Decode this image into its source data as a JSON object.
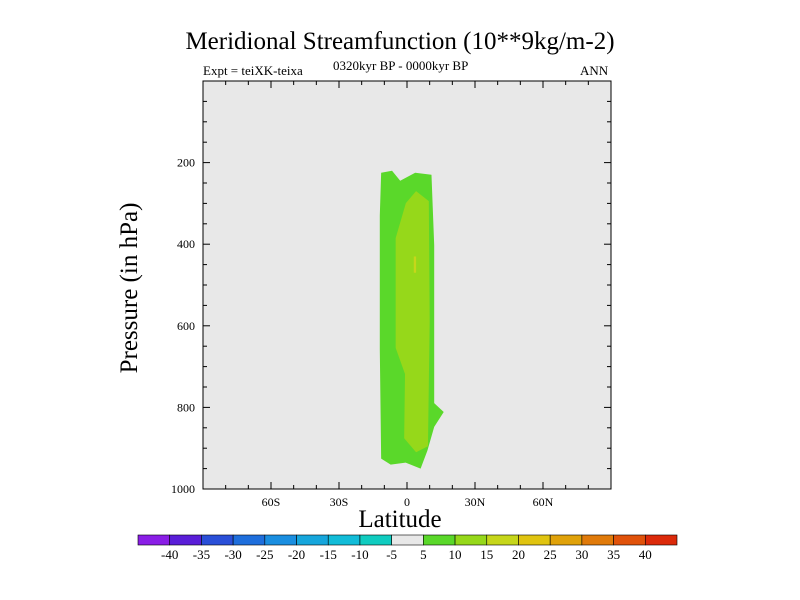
{
  "titles": {
    "main": "Meridional Streamfunction (10**9kg/m-2)",
    "left": "Expt = teiXK-teixa",
    "center": "0320kyr BP - 0000kyr BP",
    "right": "ANN"
  },
  "chart_data": {
    "type": "contour",
    "xlabel": "Latitude",
    "ylabel": "Pressure (in hPa)",
    "xlim": [
      -90,
      90
    ],
    "ylim": [
      1000,
      0
    ],
    "x_ticks": [
      {
        "value": -60,
        "label": "60S"
      },
      {
        "value": -30,
        "label": "30S"
      },
      {
        "value": 0,
        "label": "0"
      },
      {
        "value": 30,
        "label": "30N"
      },
      {
        "value": 60,
        "label": "60N"
      }
    ],
    "y_ticks": [
      {
        "value": 200,
        "label": "200"
      },
      {
        "value": 400,
        "label": "400"
      },
      {
        "value": 600,
        "label": "600"
      },
      {
        "value": 800,
        "label": "800"
      },
      {
        "value": 1000,
        "label": "1000"
      }
    ],
    "background_level": "-5 to 5",
    "contour_regions": [
      {
        "level": "5 to 10",
        "lat_range": [
          -12,
          12
        ],
        "pressure_range": [
          220,
          950
        ]
      },
      {
        "level": "10 to 15",
        "lat_range": [
          -5,
          10
        ],
        "pressure_range": [
          270,
          910
        ]
      },
      {
        "level": "15 to 20",
        "lat_range": [
          3,
          4
        ],
        "pressure_range": [
          430,
          470
        ]
      }
    ],
    "colorbar": {
      "labels": [
        "-40",
        "-35",
        "-30",
        "-25",
        "-20",
        "-15",
        "-10",
        "-5",
        "5",
        "10",
        "15",
        "20",
        "25",
        "30",
        "35",
        "40"
      ],
      "colors": [
        "#8a1ee6",
        "#5a1ed8",
        "#2a4fd8",
        "#1e6edc",
        "#1a8ee0",
        "#16a6dc",
        "#12bcd8",
        "#10ccc0",
        "#e8e8e8",
        "#5ad82a",
        "#96d81a",
        "#c6d61a",
        "#e0c410",
        "#e0a20a",
        "#e07a0a",
        "#e0520a",
        "#dc2a0a"
      ]
    }
  }
}
